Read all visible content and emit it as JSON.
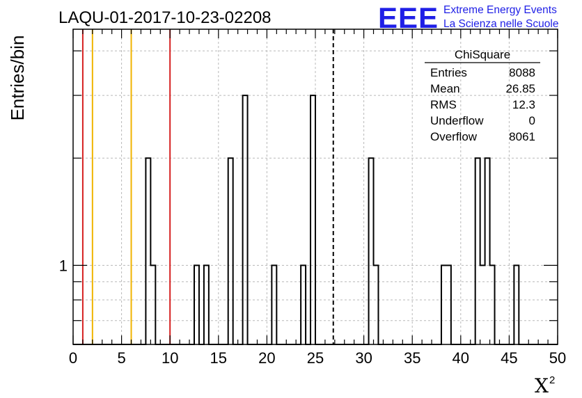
{
  "chart_data": {
    "type": "bar",
    "title": "LAQU-01-2017-10-23-02208",
    "xlabel": "X",
    "xlabel_sup": "2",
    "ylabel": "Entries/bin",
    "xlim": [
      0,
      50
    ],
    "ylog": true,
    "ylim": [
      0.6,
      4.6
    ],
    "grid": true,
    "x_ticks": [
      0,
      5,
      10,
      15,
      20,
      25,
      30,
      35,
      40,
      45,
      50
    ],
    "y_tick_labels": [
      {
        "value": 1,
        "label": "1"
      }
    ],
    "bin_width": 0.5,
    "bins": [
      {
        "x": 7.5,
        "y": 2
      },
      {
        "x": 8.0,
        "y": 1
      },
      {
        "x": 12.5,
        "y": 1
      },
      {
        "x": 13.5,
        "y": 1
      },
      {
        "x": 16.0,
        "y": 2
      },
      {
        "x": 17.5,
        "y": 3
      },
      {
        "x": 20.5,
        "y": 1
      },
      {
        "x": 23.5,
        "y": 1
      },
      {
        "x": 24.5,
        "y": 3
      },
      {
        "x": 30.5,
        "y": 2
      },
      {
        "x": 31.0,
        "y": 1
      },
      {
        "x": 38.0,
        "y": 1
      },
      {
        "x": 38.5,
        "y": 1
      },
      {
        "x": 41.5,
        "y": 2
      },
      {
        "x": 42.0,
        "y": 1
      },
      {
        "x": 42.5,
        "y": 2
      },
      {
        "x": 43.0,
        "y": 1
      },
      {
        "x": 45.5,
        "y": 1
      }
    ],
    "vertical_lines": [
      {
        "x": 1,
        "color": "#d62020",
        "style": "solid"
      },
      {
        "x": 2,
        "color": "#f0b400",
        "style": "solid"
      },
      {
        "x": 6,
        "color": "#f0b400",
        "style": "solid"
      },
      {
        "x": 10,
        "color": "#d62020",
        "style": "solid"
      },
      {
        "x": 26.85,
        "color": "#000000",
        "style": "dashed"
      }
    ],
    "stats_box": {
      "title": "ChiSquare",
      "rows": [
        {
          "label": "Entries",
          "value": "8088"
        },
        {
          "label": "Mean",
          "value": "26.85"
        },
        {
          "label": "RMS",
          "value": "12.3"
        },
        {
          "label": "Underflow",
          "value": "0"
        },
        {
          "label": "Overflow",
          "value": "8061"
        }
      ]
    }
  },
  "logo": {
    "mark": "EEE",
    "line1": "Extreme Energy Events",
    "line2": "La Scienza nelle Scuole",
    "color": "#1f1fe6"
  }
}
